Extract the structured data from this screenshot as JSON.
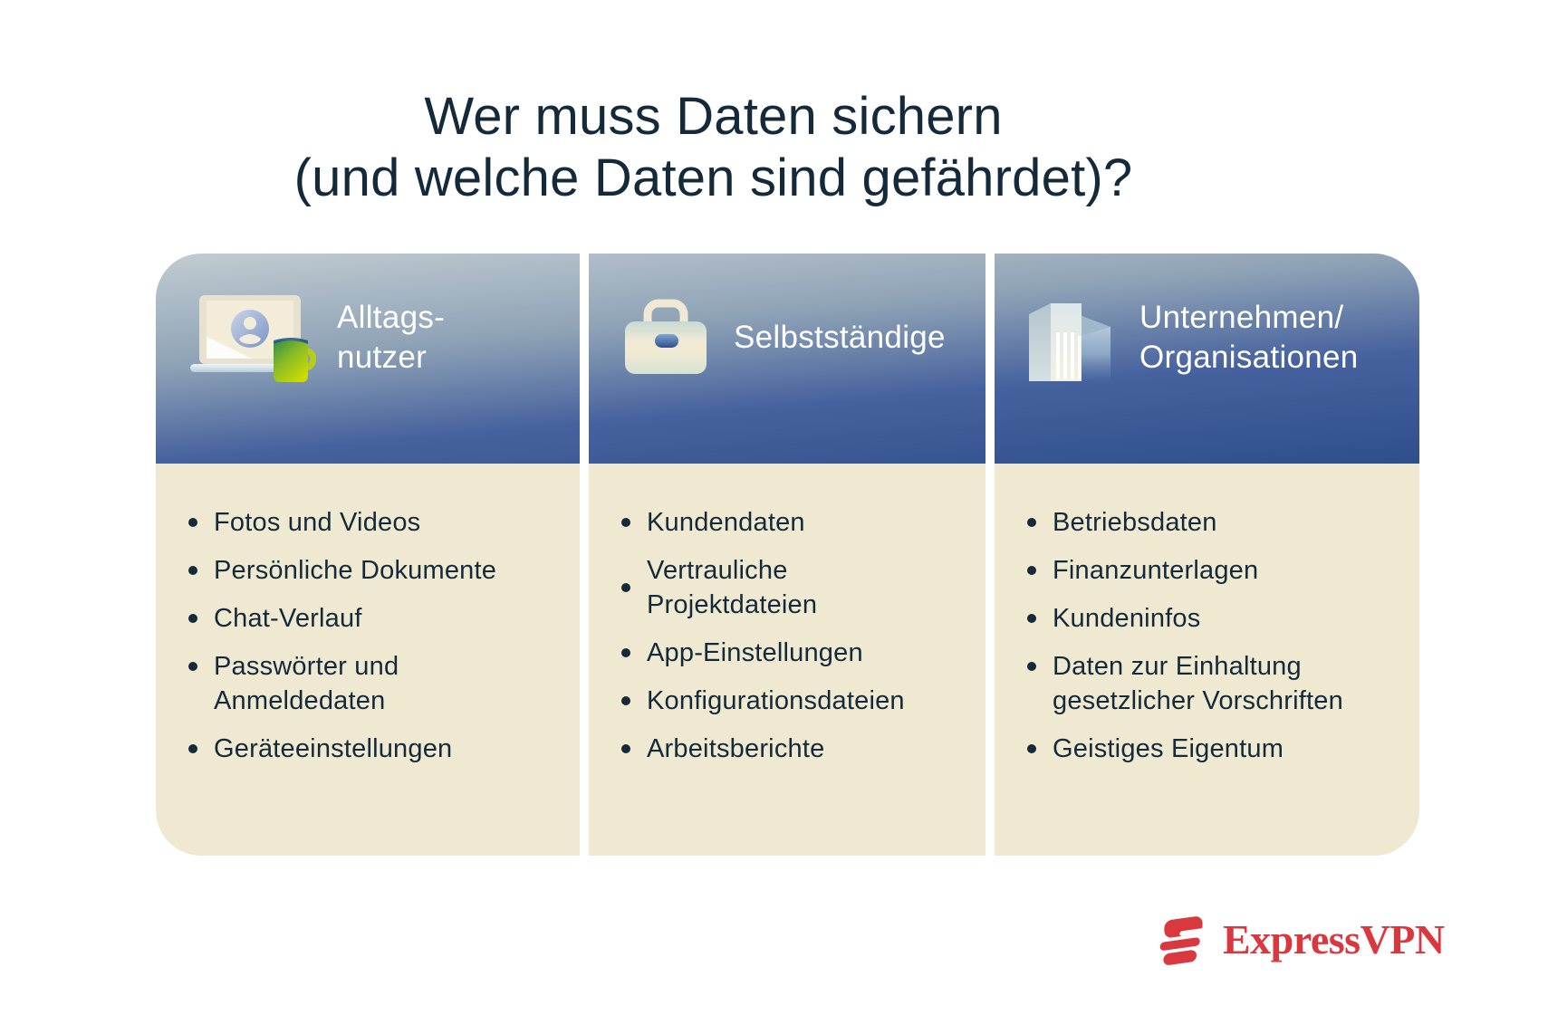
{
  "title": {
    "line1": "Wer muss Daten sichern",
    "line2": "(und welche Daten sind gefährdet)?"
  },
  "cards": [
    {
      "id": "everyday-users",
      "icon": "laptop-user-mug-icon",
      "title": "Alltags-\nnutzer",
      "items": [
        {
          "text": "Fotos und Videos"
        },
        {
          "text": "Persönliche Dokumente"
        },
        {
          "text": "Chat-Verlauf"
        },
        {
          "text": "Passwörter und\nAnmeldedaten"
        },
        {
          "text": "Geräteeinstellungen"
        }
      ]
    },
    {
      "id": "freelancers",
      "icon": "briefcase-icon",
      "title": "Selbstständige",
      "items": [
        {
          "text": "Kundendaten"
        },
        {
          "text": "Vertrauliche\nProjektdateien",
          "bullet_align": "center"
        },
        {
          "text": "App-Einstellungen"
        },
        {
          "text": "Konfigurationsdateien"
        },
        {
          "text": "Arbeitsberichte"
        }
      ]
    },
    {
      "id": "organizations",
      "icon": "building-icon",
      "title": "Unternehmen/\nOrganisationen",
      "items": [
        {
          "text": "Betriebsdaten"
        },
        {
          "text": "Finanzunterlagen"
        },
        {
          "text": "Kundeninfos"
        },
        {
          "text": "Daten zur Einhaltung\ngesetzlicher Vorschriften"
        },
        {
          "text": "Geistiges Eigentum"
        }
      ]
    }
  ],
  "footer": {
    "brand": "ExpressVPN"
  },
  "colors": {
    "title_text": "#142a3b",
    "header_text": "#ffffff",
    "list_text": "#142a3b",
    "card_body_bg": "#f0e9d1",
    "header_gradient_top": "#c2ccd2",
    "header_gradient_bottom": "#2f4e8c",
    "brand_red": "#d9383f"
  }
}
